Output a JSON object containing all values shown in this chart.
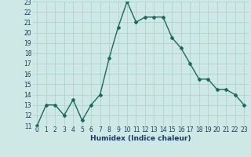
{
  "x": [
    0,
    1,
    2,
    3,
    4,
    5,
    6,
    7,
    8,
    9,
    10,
    11,
    12,
    13,
    14,
    15,
    16,
    17,
    18,
    19,
    20,
    21,
    22,
    23
  ],
  "y": [
    11,
    13,
    13,
    12,
    13.5,
    11.5,
    13,
    14,
    17.5,
    20.5,
    23,
    21,
    21.5,
    21.5,
    21.5,
    19.5,
    18.5,
    17,
    15.5,
    15.5,
    14.5,
    14.5,
    14,
    13
  ],
  "xlabel": "Humidex (Indice chaleur)",
  "ylim": [
    11,
    23
  ],
  "xlim": [
    -0.5,
    23.5
  ],
  "yticks": [
    11,
    12,
    13,
    14,
    15,
    16,
    17,
    18,
    19,
    20,
    21,
    22,
    23
  ],
  "xticks": [
    0,
    1,
    2,
    3,
    4,
    5,
    6,
    7,
    8,
    9,
    10,
    11,
    12,
    13,
    14,
    15,
    16,
    17,
    18,
    19,
    20,
    21,
    22,
    23
  ],
  "line_color": "#1a6b5a",
  "marker": "D",
  "marker_size": 2.0,
  "bg_color": "#cde8e5",
  "grid_color": "#aacfcc",
  "label_color": "#1a3a5c",
  "tick_label_fontsize": 5.5,
  "xlabel_fontsize": 6.5,
  "line_width": 1.0
}
